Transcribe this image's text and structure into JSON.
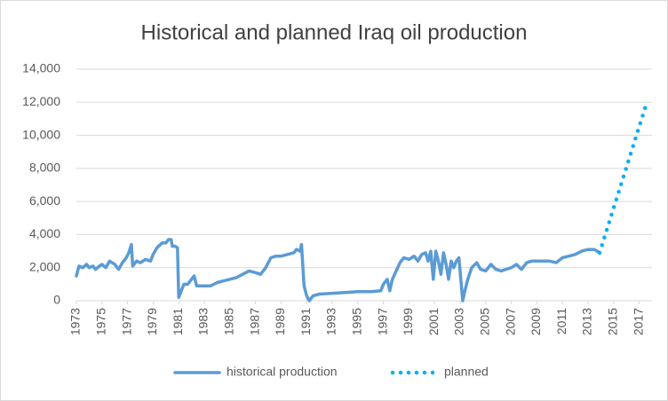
{
  "chart_data": {
    "type": "line",
    "title": "Historical and planned Iraq oil production",
    "xlim": [
      1973,
      2018
    ],
    "xticks": [
      1973,
      1975,
      1977,
      1979,
      1981,
      1983,
      1985,
      1987,
      1989,
      1991,
      1993,
      1995,
      1997,
      1999,
      2001,
      2003,
      2005,
      2007,
      2009,
      2011,
      2013,
      2015,
      2017
    ],
    "ylim": [
      0,
      14000
    ],
    "yticks": [
      0,
      {
        "value": 2000,
        "label": "2,000"
      },
      {
        "value": 4000,
        "label": "4,000"
      },
      {
        "value": 6000,
        "label": "6,000"
      },
      {
        "value": 8000,
        "label": "8,000"
      },
      {
        "value": 10000,
        "label": "10,000"
      },
      {
        "value": 12000,
        "label": "12,000"
      },
      {
        "value": 14000,
        "label": "14,000"
      }
    ],
    "grid": true,
    "legend": "bottom",
    "series": [
      {
        "name": "historical production",
        "color": "#5b9bd5",
        "style": "solid",
        "x": [
          1973,
          1973.2,
          1973.5,
          1973.8,
          1974,
          1974.3,
          1974.5,
          1974.8,
          1975,
          1975.3,
          1975.6,
          1976,
          1976.3,
          1976.6,
          1976.9,
          1977.1,
          1977.3,
          1977.4,
          1977.7,
          1978,
          1978.4,
          1978.8,
          1979,
          1979.3,
          1979.7,
          1980,
          1980.2,
          1980.4,
          1980.5,
          1980.7,
          1980.9,
          1981,
          1981.2,
          1981.4,
          1981.7,
          1982,
          1982.2,
          1982.4,
          1983,
          1983.5,
          1984,
          1984.5,
          1985,
          1985.5,
          1986,
          1986.5,
          1987,
          1987.4,
          1987.8,
          1988.2,
          1988.6,
          1989,
          1989.5,
          1990,
          1990.2,
          1990.5,
          1990.6,
          1990.8,
          1991,
          1991.2,
          1991.5,
          1992,
          1993,
          1994,
          1995,
          1996,
          1996.8,
          1997,
          1997.3,
          1997.5,
          1997.7,
          1998,
          1998.3,
          1998.6,
          1999,
          1999.4,
          1999.7,
          2000,
          2000.3,
          2000.5,
          2000.7,
          2000.9,
          2001.1,
          2001.3,
          2001.5,
          2001.7,
          2001.9,
          2002.1,
          2002.3,
          2002.5,
          2002.7,
          2002.9,
          2003.2,
          2003.4,
          2003.6,
          2003.9,
          2004.3,
          2004.6,
          2005,
          2005.4,
          2005.8,
          2006.2,
          2006.6,
          2007,
          2007.4,
          2007.8,
          2008.2,
          2008.6,
          2009,
          2009.5,
          2010,
          2010.5,
          2011,
          2011.5,
          2012,
          2012.5,
          2013,
          2013.5,
          2013.9
        ],
        "values": [
          1500,
          2100,
          2000,
          2200,
          2000,
          2100,
          1900,
          2100,
          2200,
          2000,
          2400,
          2200,
          1900,
          2300,
          2600,
          2900,
          3400,
          2100,
          2400,
          2300,
          2500,
          2400,
          2800,
          3200,
          3500,
          3500,
          3700,
          3700,
          3300,
          3300,
          3200,
          200,
          600,
          1000,
          1000,
          1300,
          1500,
          900,
          900,
          900,
          1100,
          1200,
          1300,
          1400,
          1600,
          1800,
          1700,
          1600,
          2000,
          2600,
          2700,
          2700,
          2800,
          2900,
          3100,
          3000,
          3400,
          900,
          300,
          0,
          300,
          400,
          450,
          500,
          550,
          550,
          600,
          1000,
          1300,
          600,
          1300,
          1800,
          2300,
          2600,
          2500,
          2700,
          2400,
          2800,
          2900,
          2400,
          3000,
          1300,
          3000,
          2400,
          1600,
          2900,
          2200,
          1300,
          2400,
          2000,
          2400,
          2600,
          0,
          700,
          1300,
          2000,
          2300,
          1900,
          1800,
          2200,
          1900,
          1800,
          1900,
          2000,
          2200,
          1900,
          2300,
          2400,
          2400,
          2400,
          2400,
          2300,
          2600,
          2700,
          2800,
          3000,
          3100,
          3100,
          2900
        ]
      },
      {
        "name": "planned",
        "color": "#00b0f0",
        "style": "dotted",
        "x": [
          2013.9,
          2017.6
        ],
        "values": [
          2900,
          12000
        ]
      }
    ]
  }
}
